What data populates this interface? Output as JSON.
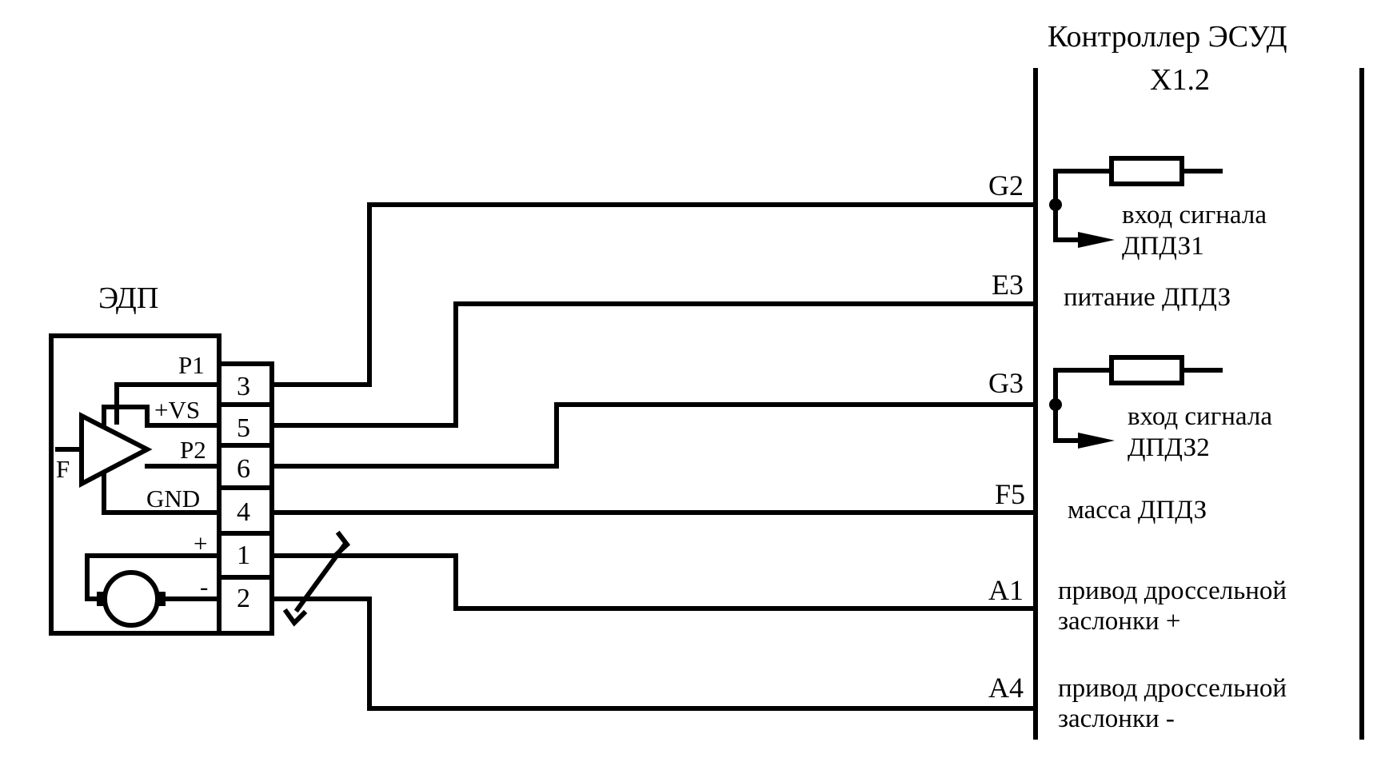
{
  "controller": {
    "title": "Контроллер ЭСУД",
    "connector": "X1.2"
  },
  "edp": {
    "title": "ЭДП",
    "sensor_input": "F",
    "pin_labels": {
      "p1": "P1",
      "vs": "+VS",
      "p2": "P2",
      "gnd": "GND",
      "plus": "+",
      "minus": "-"
    },
    "pin_numbers": {
      "n3": "3",
      "n5": "5",
      "n6": "6",
      "n4": "4",
      "n1": "1",
      "n2": "2"
    }
  },
  "controller_pins": {
    "g2": "G2",
    "e3": "E3",
    "g3": "G3",
    "f5": "F5",
    "a1": "A1",
    "a4": "A4"
  },
  "signals": {
    "g2_line1": "вход сигнала",
    "g2_line2": "ДПДЗ1",
    "e3": "питание ДПДЗ",
    "g3_line1": "вход сигнала",
    "g3_line2": "ДПДЗ2",
    "f5": "масса ДПДЗ",
    "a1_line1": "привод дроссельной",
    "a1_line2": "заслонки +",
    "a4_line1": "привод дроссельной",
    "a4_line2": "заслонки -"
  }
}
